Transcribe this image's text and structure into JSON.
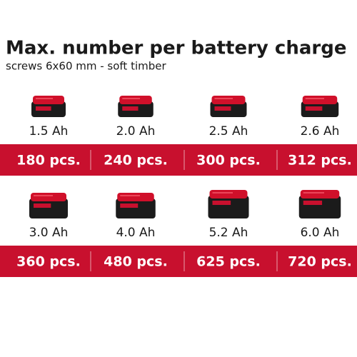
{
  "header": {
    "title": "Max. number per battery charge",
    "subtitle": "screws 6x60 mm - soft timber"
  },
  "rows": [
    {
      "items": [
        {
          "capacity": "1.5 Ah",
          "count": "180 pcs."
        },
        {
          "capacity": "2.0 Ah",
          "count": "240 pcs."
        },
        {
          "capacity": "2.5 Ah",
          "count": "300 pcs."
        },
        {
          "capacity": "2.6 Ah",
          "count": "312 pcs."
        }
      ]
    },
    {
      "items": [
        {
          "capacity": "3.0 Ah",
          "count": "360 pcs."
        },
        {
          "capacity": "4.0 Ah",
          "count": "480 pcs."
        },
        {
          "capacity": "5.2 Ah",
          "count": "625 pcs."
        },
        {
          "capacity": "6.0 Ah",
          "count": "720 pcs."
        }
      ]
    }
  ]
}
